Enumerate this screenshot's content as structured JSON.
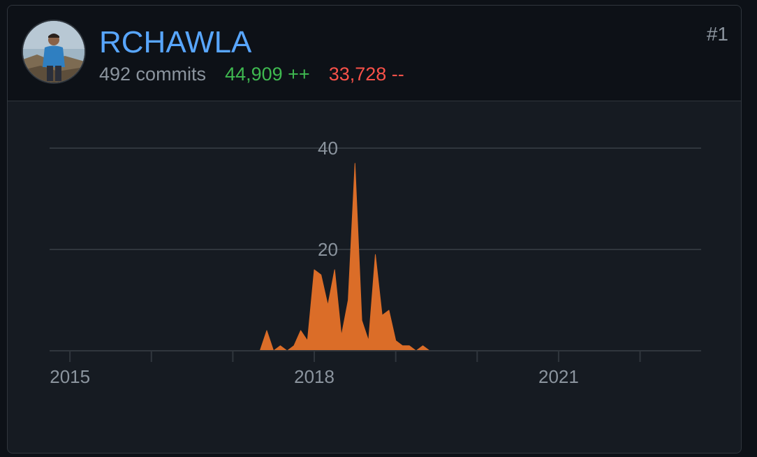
{
  "contributor": {
    "username": "RCHAWLA",
    "commits_text": "492 commits",
    "additions_text": "44,909 ++",
    "deletions_text": "33,728 --",
    "rank": "#1",
    "avatar_icon": "user-photo-icon"
  },
  "colors": {
    "username": "#58a6ff",
    "additions": "#3fb950",
    "deletions": "#f85149",
    "area_fill": "#db6d28",
    "grid": "#30363d",
    "background": "#161b22"
  },
  "chart_data": {
    "type": "area",
    "title": "",
    "xlabel": "",
    "ylabel": "",
    "x_ticks": [
      "2015",
      "2018",
      "2021"
    ],
    "y_ticks": [
      "20",
      "40"
    ],
    "ylim": [
      0,
      40
    ],
    "xlim": [
      "2014-10",
      "2022-10"
    ],
    "grid": true,
    "series": [
      {
        "values_by_month": [
          [
            "2017-05",
            0
          ],
          [
            "2017-06",
            4
          ],
          [
            "2017-07",
            0
          ],
          [
            "2017-08",
            1
          ],
          [
            "2017-09",
            0
          ],
          [
            "2017-10",
            1
          ],
          [
            "2017-11",
            4
          ],
          [
            "2017-12",
            2
          ],
          [
            "2018-01",
            16
          ],
          [
            "2018-02",
            15
          ],
          [
            "2018-03",
            9
          ],
          [
            "2018-04",
            16
          ],
          [
            "2018-05",
            3
          ],
          [
            "2018-06",
            10
          ],
          [
            "2018-07",
            37
          ],
          [
            "2018-08",
            6
          ],
          [
            "2018-09",
            2
          ],
          [
            "2018-10",
            19
          ],
          [
            "2018-11",
            7
          ],
          [
            "2018-12",
            8
          ],
          [
            "2019-01",
            2
          ],
          [
            "2019-02",
            1
          ],
          [
            "2019-03",
            1
          ],
          [
            "2019-04",
            0
          ],
          [
            "2019-05",
            1
          ],
          [
            "2019-06",
            0
          ]
        ]
      }
    ]
  }
}
